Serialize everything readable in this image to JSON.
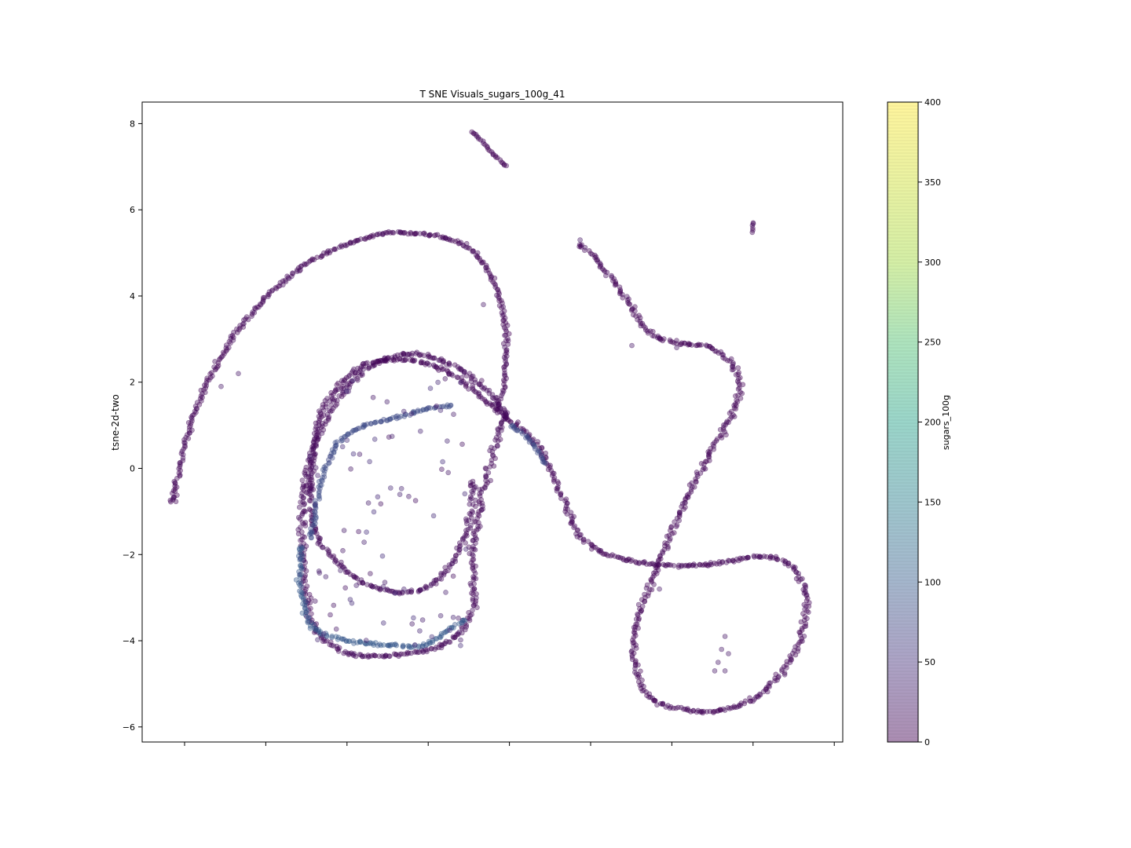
{
  "chart_data": {
    "type": "scatter",
    "title": "T SNE Visuals_sugars_100g_41",
    "xlabel": "",
    "ylabel": "tsne-2d-two",
    "ylim": [
      -6.35,
      8.5
    ],
    "y_ticks": [
      8,
      6,
      4,
      2,
      0,
      -2,
      -4,
      -6
    ],
    "y_tick_labels": [
      "8",
      "6",
      "4",
      "2",
      "0",
      "−2",
      "−4",
      "−6"
    ],
    "x_tick_labels_visible": false,
    "grid": false,
    "colormap": "viridis",
    "point_alpha": 0.4,
    "colorbar": {
      "label": "sugars_100g",
      "range": [
        0,
        400
      ],
      "ticks": [
        0,
        50,
        100,
        150,
        200,
        250,
        300,
        350,
        400
      ],
      "tick_labels": [
        "0",
        "50",
        "100",
        "150",
        "200",
        "250",
        "300",
        "350",
        "400"
      ]
    },
    "note_points": "Points are represented as curve segments in plot units with approximate sugar values; the plot draws many markers along each segment.",
    "curves": [
      {
        "sugar": 6,
        "width": 0.04,
        "points": [
          [
            0.2,
            -0.8
          ],
          [
            0.6,
            0.7
          ],
          [
            1.4,
            2.3
          ],
          [
            2.6,
            3.7
          ],
          [
            4.2,
            4.8
          ],
          [
            6.0,
            5.4
          ],
          [
            7.3,
            5.45
          ],
          [
            8.6,
            5.2
          ],
          [
            9.4,
            4.5
          ],
          [
            9.8,
            3.5
          ],
          [
            9.85,
            2.4
          ],
          [
            9.6,
            1.3
          ]
        ]
      },
      {
        "sugar": 6,
        "width": 0.05,
        "points": [
          [
            4.2,
            -0.5
          ],
          [
            4.3,
            0.7
          ],
          [
            4.8,
            1.7
          ],
          [
            5.8,
            2.4
          ],
          [
            7.1,
            2.5
          ],
          [
            8.3,
            2.2
          ],
          [
            9.2,
            1.6
          ],
          [
            10.0,
            1.1
          ],
          [
            10.8,
            0.5
          ],
          [
            11.3,
            -0.3
          ],
          [
            11.8,
            -1.3
          ],
          [
            12.4,
            -1.85
          ],
          [
            13.5,
            -2.15
          ],
          [
            14.8,
            -2.25
          ],
          [
            16.0,
            -2.2
          ],
          [
            17.2,
            -2.05
          ],
          [
            18.0,
            -2.2
          ],
          [
            18.5,
            -2.8
          ],
          [
            18.5,
            -3.6
          ],
          [
            18.1,
            -4.4
          ],
          [
            17.3,
            -5.2
          ],
          [
            16.2,
            -5.6
          ],
          [
            15.0,
            -5.6
          ],
          [
            14.0,
            -5.3
          ],
          [
            13.6,
            -4.6
          ],
          [
            13.6,
            -3.8
          ],
          [
            14.0,
            -2.8
          ],
          [
            14.6,
            -1.6
          ],
          [
            15.2,
            -0.5
          ],
          [
            15.8,
            0.4
          ],
          [
            16.3,
            1.1
          ],
          [
            16.6,
            1.7
          ],
          [
            16.5,
            2.3
          ],
          [
            15.8,
            2.8
          ],
          [
            14.9,
            2.9
          ],
          [
            14.1,
            3.1
          ],
          [
            13.6,
            3.6
          ],
          [
            13.0,
            4.3
          ],
          [
            12.4,
            4.9
          ],
          [
            11.9,
            5.2
          ]
        ]
      },
      {
        "sugar": 10,
        "width": 0.05,
        "points": [
          [
            8.9,
            -0.3
          ],
          [
            8.8,
            -1.2
          ],
          [
            8.5,
            -1.9
          ],
          [
            8.0,
            -2.5
          ],
          [
            7.2,
            -2.85
          ],
          [
            6.2,
            -2.8
          ],
          [
            5.1,
            -2.3
          ],
          [
            4.3,
            -1.4
          ],
          [
            4.2,
            -0.4
          ]
        ]
      },
      {
        "sugar": 8,
        "width": 0.06,
        "points": [
          [
            9.8,
            1.2
          ],
          [
            9.2,
            -0.5
          ],
          [
            8.9,
            -2.0
          ],
          [
            8.9,
            -3.2
          ],
          [
            8.4,
            -3.9
          ],
          [
            7.6,
            -4.2
          ],
          [
            6.4,
            -4.35
          ],
          [
            5.3,
            -4.3
          ],
          [
            4.5,
            -3.9
          ],
          [
            4.1,
            -3.2
          ],
          [
            3.95,
            -2.0
          ],
          [
            4.0,
            -0.6
          ],
          [
            4.3,
            0.5
          ],
          [
            4.9,
            1.5
          ],
          [
            5.8,
            2.3
          ],
          [
            7.0,
            2.65
          ],
          [
            8.3,
            2.4
          ],
          [
            9.3,
            1.8
          ],
          [
            9.9,
            1.2
          ]
        ]
      },
      {
        "sugar": 90,
        "width": 0.04,
        "points": [
          [
            4.2,
            -1.6
          ],
          [
            4.5,
            -0.3
          ],
          [
            5.0,
            0.6
          ],
          [
            5.8,
            1.0
          ],
          [
            6.8,
            1.2
          ],
          [
            7.7,
            1.4
          ],
          [
            8.3,
            1.45
          ]
        ]
      },
      {
        "sugar": 110,
        "width": 0.05,
        "points": [
          [
            3.9,
            -1.8
          ],
          [
            3.95,
            -3.0
          ],
          [
            4.3,
            -3.7
          ],
          [
            5.3,
            -4.0
          ],
          [
            6.5,
            -4.1
          ],
          [
            7.5,
            -4.1
          ],
          [
            8.3,
            -3.7
          ],
          [
            8.7,
            -3.5
          ]
        ]
      },
      {
        "sugar": 90,
        "width": 0.04,
        "points": [
          [
            10.0,
            1.0
          ],
          [
            10.6,
            0.6
          ],
          [
            11.0,
            0.1
          ]
        ]
      },
      {
        "sugar": 6,
        "width": 0.02,
        "points": [
          [
            8.9,
            7.8
          ],
          [
            9.6,
            7.2
          ],
          [
            9.85,
            7.0
          ]
        ]
      },
      {
        "sugar": 6,
        "width": 0.02,
        "points": [
          [
            17.0,
            5.7
          ],
          [
            17.0,
            5.45
          ]
        ]
      }
    ],
    "scatter_noise": [
      {
        "sugar": 20,
        "region": "inner-loop",
        "count": 160
      }
    ]
  }
}
